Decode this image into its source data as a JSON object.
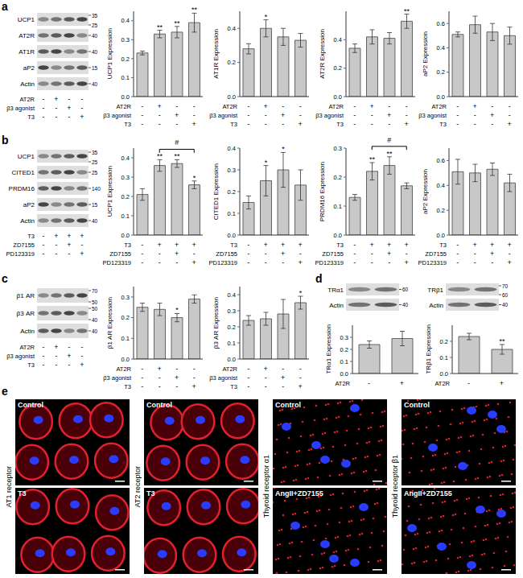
{
  "chart_data": [
    {
      "panel": "a",
      "type": "bar",
      "y_label": "UCP1 Expression",
      "categories": [
        null,
        null,
        null,
        null
      ],
      "values": [
        0.23,
        0.33,
        0.34,
        0.39
      ],
      "errors": [
        0.01,
        0.02,
        0.03,
        0.05
      ],
      "significance": [
        null,
        "**",
        "**",
        "**"
      ],
      "color": "#c8c8c8",
      "ylim": [
        0,
        0.45
      ],
      "yticks": [
        {
          "value": 0,
          "label": "0.0"
        },
        0.1,
        0.2,
        0.3,
        0.4
      ],
      "conditions": [
        {
          "name": "AT2R",
          "signs": [
            "-",
            "+",
            "-",
            "-"
          ]
        },
        {
          "name": "β3 agonist",
          "signs": [
            "-",
            "-",
            "+",
            "-"
          ]
        },
        {
          "name": "T3",
          "signs": [
            "-",
            "-",
            "-",
            "+"
          ]
        }
      ]
    },
    {
      "panel": "a",
      "type": "bar",
      "y_label": "AT1R Expression",
      "categories": [
        null,
        null,
        null,
        null
      ],
      "values": [
        0.28,
        0.4,
        0.35,
        0.33
      ],
      "errors": [
        0.03,
        0.05,
        0.05,
        0.04
      ],
      "significance": [
        null,
        "*",
        null,
        null
      ],
      "color": "#c8c8c8",
      "ylim": [
        0,
        0.5
      ],
      "yticks": [
        {
          "value": 0,
          "label": "0.0"
        },
        0.2,
        0.4
      ],
      "conditions": [
        {
          "name": "AT2R",
          "signs": [
            "-",
            "+",
            "-",
            "-"
          ]
        },
        {
          "name": "β3 agonist",
          "signs": [
            "-",
            "-",
            "+",
            "-"
          ]
        },
        {
          "name": "T3",
          "signs": [
            "-",
            "-",
            "-",
            "+"
          ]
        }
      ]
    },
    {
      "panel": "a",
      "type": "bar",
      "y_label": "AT2R Expression",
      "categories": [
        null,
        null,
        null,
        null
      ],
      "values": [
        0.34,
        0.42,
        0.41,
        0.53
      ],
      "errors": [
        0.03,
        0.05,
        0.04,
        0.05
      ],
      "significance": [
        null,
        null,
        null,
        "**"
      ],
      "color": "#c8c8c8",
      "ylim": [
        0,
        0.6
      ],
      "yticks": [
        {
          "value": 0,
          "label": "0.0"
        },
        0.2,
        0.4
      ],
      "conditions": [
        {
          "name": "AT2R",
          "signs": [
            "-",
            "+",
            "-",
            "-"
          ]
        },
        {
          "name": "β3 agonist",
          "signs": [
            "-",
            "-",
            "+",
            "-"
          ]
        },
        {
          "name": "T3",
          "signs": [
            "-",
            "-",
            "-",
            "+"
          ]
        }
      ]
    },
    {
      "panel": "a",
      "type": "bar",
      "y_label": "aP2 Expression",
      "categories": [
        null,
        null,
        null,
        null
      ],
      "values": [
        0.51,
        0.59,
        0.53,
        0.5
      ],
      "errors": [
        0.02,
        0.07,
        0.07,
        0.07
      ],
      "significance": [
        null,
        null,
        null,
        null
      ],
      "color": "#c8c8c8",
      "ylim": [
        0,
        0.7
      ],
      "yticks": [
        {
          "value": 0,
          "label": "0.0"
        },
        0.2,
        0.4,
        0.6
      ],
      "conditions": [
        {
          "name": "AT2R",
          "signs": [
            "-",
            "+",
            "-",
            "-"
          ]
        },
        {
          "name": "β3 agonist",
          "signs": [
            "-",
            "-",
            "+",
            "-"
          ]
        },
        {
          "name": "T3",
          "signs": [
            "-",
            "-",
            "-",
            "+"
          ]
        }
      ]
    },
    {
      "panel": "b",
      "type": "bar",
      "y_label": "UCP1 Expression",
      "categories": [
        null,
        null,
        null,
        null
      ],
      "values": [
        0.21,
        0.36,
        0.37,
        0.26
      ],
      "errors": [
        0.03,
        0.03,
        0.02,
        0.02
      ],
      "significance": [
        null,
        "**",
        "**",
        "*"
      ],
      "bracket": {
        "from": 1,
        "to": 3,
        "label": "#"
      },
      "color": "#c8c8c8",
      "ylim": [
        0,
        0.45
      ],
      "yticks": [
        {
          "value": 0,
          "label": "0.0"
        },
        0.1,
        0.2,
        0.3,
        0.4
      ],
      "conditions": [
        {
          "name": "T3",
          "signs": [
            "-",
            "+",
            "+",
            "+"
          ]
        },
        {
          "name": "ZD7155",
          "signs": [
            "-",
            "-",
            "+",
            "-"
          ]
        },
        {
          "name": "PD123319",
          "signs": [
            "-",
            "-",
            "-",
            "+"
          ]
        }
      ]
    },
    {
      "panel": "b",
      "type": "bar",
      "y_label": "CITED1 Expression",
      "categories": [
        null,
        null,
        null,
        null
      ],
      "values": [
        0.15,
        0.25,
        0.3,
        0.23
      ],
      "errors": [
        0.03,
        0.07,
        0.08,
        0.07
      ],
      "significance": [
        null,
        "*",
        "*",
        null
      ],
      "color": "#c8c8c8",
      "ylim": [
        0,
        0.4
      ],
      "yticks": [
        {
          "value": 0,
          "label": "0.0"
        },
        0.1,
        0.2,
        0.3,
        0.4
      ],
      "conditions": [
        {
          "name": "T3",
          "signs": [
            "-",
            "+",
            "+",
            "+"
          ]
        },
        {
          "name": "ZD7155",
          "signs": [
            "-",
            "-",
            "+",
            "-"
          ]
        },
        {
          "name": "PD123319",
          "signs": [
            "-",
            "-",
            "-",
            "+"
          ]
        }
      ]
    },
    {
      "panel": "b",
      "type": "bar",
      "y_label": "PRDM16 Expression",
      "categories": [
        null,
        null,
        null,
        null
      ],
      "values": [
        0.13,
        0.22,
        0.24,
        0.17
      ],
      "errors": [
        0.01,
        0.03,
        0.03,
        0.01
      ],
      "significance": [
        null,
        "**",
        "**",
        null
      ],
      "bracket": {
        "from": 1,
        "to": 3,
        "label": "#"
      },
      "color": "#c8c8c8",
      "ylim": [
        0,
        0.3
      ],
      "yticks": [
        {
          "value": 0,
          "label": "0.0"
        },
        0.1,
        0.2,
        0.3
      ],
      "conditions": [
        {
          "name": "T3",
          "signs": [
            "-",
            "+",
            "+",
            "+"
          ]
        },
        {
          "name": "ZD7155",
          "signs": [
            "-",
            "-",
            "+",
            "-"
          ]
        },
        {
          "name": "PD123319",
          "signs": [
            "-",
            "-",
            "-",
            "+"
          ]
        }
      ]
    },
    {
      "panel": "b",
      "type": "bar",
      "y_label": "aP2 Expression",
      "categories": [
        null,
        null,
        null,
        null
      ],
      "values": [
        0.51,
        0.5,
        0.53,
        0.42
      ],
      "errors": [
        0.1,
        0.07,
        0.05,
        0.07
      ],
      "significance": [
        null,
        null,
        null,
        null
      ],
      "color": "#c8c8c8",
      "ylim": [
        0,
        0.7
      ],
      "yticks": [
        {
          "value": 0,
          "label": "0.0"
        },
        0.2,
        0.4,
        0.6
      ],
      "conditions": [
        {
          "name": "T3",
          "signs": [
            "-",
            "+",
            "+",
            "+"
          ]
        },
        {
          "name": "ZD7155",
          "signs": [
            "-",
            "-",
            "+",
            "-"
          ]
        },
        {
          "name": "PD123319",
          "signs": [
            "-",
            "-",
            "-",
            "+"
          ]
        }
      ]
    },
    {
      "panel": "c",
      "type": "bar",
      "y_label": "β1 AR Expression",
      "categories": [
        null,
        null,
        null,
        null
      ],
      "values": [
        0.25,
        0.24,
        0.2,
        0.29
      ],
      "errors": [
        0.02,
        0.03,
        0.02,
        0.02
      ],
      "significance": [
        null,
        null,
        "*",
        null
      ],
      "color": "#c8c8c8",
      "ylim": [
        0,
        0.35
      ],
      "yticks": [
        {
          "value": 0,
          "label": "0.0"
        },
        0.1,
        0.2,
        0.3
      ],
      "conditions": [
        {
          "name": "AT2R",
          "signs": [
            "-",
            "+",
            "-",
            "-"
          ]
        },
        {
          "name": "β3 agonist",
          "signs": [
            "-",
            "-",
            "+",
            "-"
          ]
        },
        {
          "name": "T3",
          "signs": [
            "-",
            "-",
            "-",
            "+"
          ]
        }
      ]
    },
    {
      "panel": "c",
      "type": "bar",
      "y_label": "β3 AR Expression",
      "categories": [
        null,
        null,
        null,
        null
      ],
      "values": [
        0.24,
        0.25,
        0.28,
        0.35
      ],
      "errors": [
        0.03,
        0.04,
        0.09,
        0.04
      ],
      "significance": [
        null,
        null,
        null,
        "*"
      ],
      "color": "#c8c8c8",
      "ylim": [
        0,
        0.45
      ],
      "yticks": [
        {
          "value": 0,
          "label": "0.0"
        },
        0.1,
        0.2,
        0.3,
        0.4
      ],
      "conditions": [
        {
          "name": "AT2R",
          "signs": [
            "-",
            "+",
            "-",
            "-"
          ]
        },
        {
          "name": "β3 agonist",
          "signs": [
            "-",
            "-",
            "+",
            "-"
          ]
        },
        {
          "name": "T3",
          "signs": [
            "-",
            "-",
            "-",
            "+"
          ]
        }
      ]
    },
    {
      "panel": "d",
      "type": "bar",
      "y_label": "TRα1 Expression",
      "categories": [
        null,
        null
      ],
      "values": [
        0.24,
        0.29
      ],
      "errors": [
        0.03,
        0.06
      ],
      "significance": [
        null,
        null
      ],
      "color": "#c8c8c8",
      "ylim": [
        0,
        0.4
      ],
      "yticks": [
        {
          "value": 0,
          "label": "0.0"
        },
        0.1,
        0.2,
        0.3
      ],
      "conditions": [
        {
          "name": "AT2R",
          "signs": [
            "-",
            "+"
          ]
        }
      ]
    },
    {
      "panel": "d",
      "type": "bar",
      "y_label": "TRβ1 Expression",
      "categories": [
        null,
        null
      ],
      "values": [
        0.23,
        0.15
      ],
      "errors": [
        0.02,
        0.03
      ],
      "significance": [
        null,
        "**"
      ],
      "color": "#c8c8c8",
      "ylim": [
        0,
        0.3
      ],
      "yticks": [
        {
          "value": 0,
          "label": "0.0"
        },
        0.1,
        0.2
      ],
      "conditions": [
        {
          "name": "AT2R",
          "signs": [
            "-",
            "+"
          ]
        }
      ]
    }
  ],
  "blots": [
    {
      "panel": "a",
      "rows": [
        {
          "label": "UCP1",
          "markers": [
            35,
            25
          ]
        },
        {
          "label": "AT2R",
          "markers": [
            40
          ]
        },
        {
          "label": "AT1R",
          "markers": [
            40
          ]
        },
        {
          "label": "aP2",
          "markers": [
            15
          ]
        },
        {
          "label": "Actin",
          "markers": [
            40
          ]
        }
      ],
      "conditions": [
        {
          "name": "AT2R",
          "signs": [
            "-",
            "+",
            "-",
            "-"
          ]
        },
        {
          "name": "β3 agonist",
          "signs": [
            "-",
            "-",
            "+",
            "-"
          ]
        },
        {
          "name": "T3",
          "signs": [
            "-",
            "-",
            "-",
            "+"
          ]
        }
      ]
    },
    {
      "panel": "b",
      "rows": [
        {
          "label": "UCP1",
          "markers": [
            35,
            25
          ]
        },
        {
          "label": "CITED1",
          "markers": [
            25
          ]
        },
        {
          "label": "PRDM16",
          "markers": [
            140
          ]
        },
        {
          "label": "aP2",
          "markers": [
            15
          ]
        },
        {
          "label": "Actin",
          "markers": [
            40
          ]
        }
      ],
      "conditions": [
        {
          "name": "T3",
          "signs": [
            "-",
            "+",
            "+",
            "+"
          ]
        },
        {
          "name": "ZD7155",
          "signs": [
            "-",
            "-",
            "+",
            "-"
          ]
        },
        {
          "name": "PD123319",
          "signs": [
            "-",
            "-",
            "-",
            "+"
          ]
        }
      ]
    },
    {
      "panel": "c",
      "rows": [
        {
          "label": "β1 AR",
          "markers": [
            70,
            50
          ]
        },
        {
          "label": "β3 AR",
          "markers": [
            50,
            40
          ]
        },
        {
          "label": "Actin",
          "markers": [
            40
          ]
        }
      ],
      "conditions": [
        {
          "name": "AT2R",
          "signs": [
            "-",
            "+",
            "-",
            "-"
          ]
        },
        {
          "name": "β3 agonist",
          "signs": [
            "-",
            "-",
            "+",
            "-"
          ]
        },
        {
          "name": "T3",
          "signs": [
            "-",
            "-",
            "-",
            "+"
          ]
        }
      ]
    },
    {
      "panel": "d",
      "rows": [
        {
          "label": "TRα1",
          "markers": [
            60
          ]
        },
        {
          "label": "Actin",
          "markers": [
            40
          ]
        }
      ]
    },
    {
      "panel": "d",
      "rows": [
        {
          "label": "TRβ1",
          "markers": [
            70,
            60
          ]
        },
        {
          "label": "Actin",
          "markers": [
            40
          ]
        }
      ]
    }
  ],
  "images": {
    "panel": "e",
    "columns": [
      {
        "label": "AT1 receptor",
        "top": "Control",
        "bottom": "T3"
      },
      {
        "label": "AT2 receptor",
        "top": "Control",
        "bottom": "T3"
      },
      {
        "label": "Thyroid receptor α1",
        "top": "Control",
        "bottom": "AngII+ZD7155"
      },
      {
        "label": "Thyroid receptor β1",
        "top": "Control",
        "bottom": "AngII+ZD7155"
      }
    ]
  }
}
